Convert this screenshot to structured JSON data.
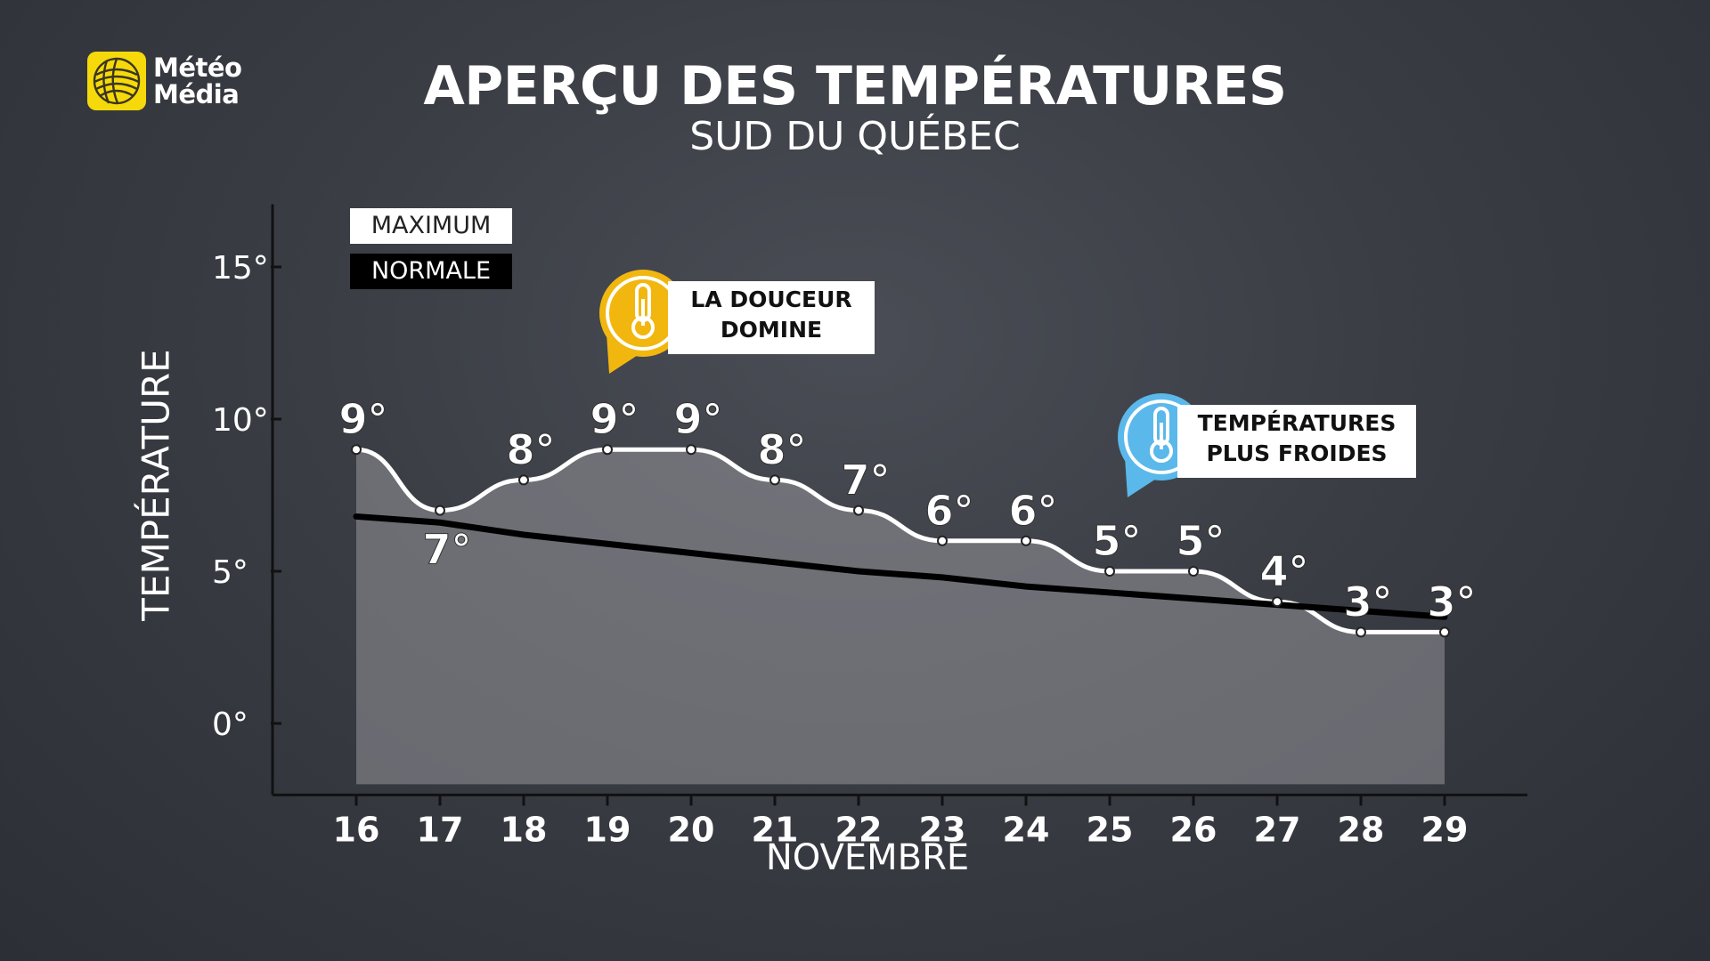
{
  "brand": {
    "line1": "Météo",
    "line2": "Média",
    "color": "#f5d90a"
  },
  "chart_data": {
    "type": "line",
    "title": "APERÇU DES TEMPÉRATURES",
    "subtitle": "SUD DU QUÉBEC",
    "xlabel": "NOVEMBRE",
    "ylabel": "TEMPÉRATURE",
    "categories": [
      "16",
      "17",
      "18",
      "19",
      "20",
      "21",
      "22",
      "23",
      "24",
      "25",
      "26",
      "27",
      "28",
      "29"
    ],
    "yticks": [
      "0°",
      "5°",
      "10°",
      "15°"
    ],
    "ylim": [
      -2,
      17
    ],
    "series": [
      {
        "name": "MAXIMUM",
        "values": [
          9,
          7,
          8,
          9,
          9,
          8,
          7,
          6,
          6,
          5,
          5,
          4,
          3,
          3
        ],
        "labels": [
          "9°",
          "7°",
          "8°",
          "9°",
          "9°",
          "8°",
          "7°",
          "6°",
          "6°",
          "5°",
          "5°",
          "4°",
          "3°",
          "3°"
        ],
        "color": "#ffffff"
      },
      {
        "name": "NORMALE",
        "values": [
          6.8,
          6.6,
          6.2,
          5.9,
          5.6,
          5.3,
          5.0,
          4.8,
          4.5,
          4.3,
          4.1,
          3.9,
          3.7,
          3.5
        ],
        "color": "#000000"
      }
    ],
    "annotations": [
      {
        "line1": "LA DOUCEUR",
        "line2": "DOMINE",
        "icon": "thermometer-warm-icon",
        "color": "#f2b70f"
      },
      {
        "line1": "TEMPÉRATURES",
        "line2": "PLUS FROIDES",
        "icon": "thermometer-cold-icon",
        "color": "#5bb8ea"
      }
    ],
    "legend": "top-left",
    "grid": false
  }
}
